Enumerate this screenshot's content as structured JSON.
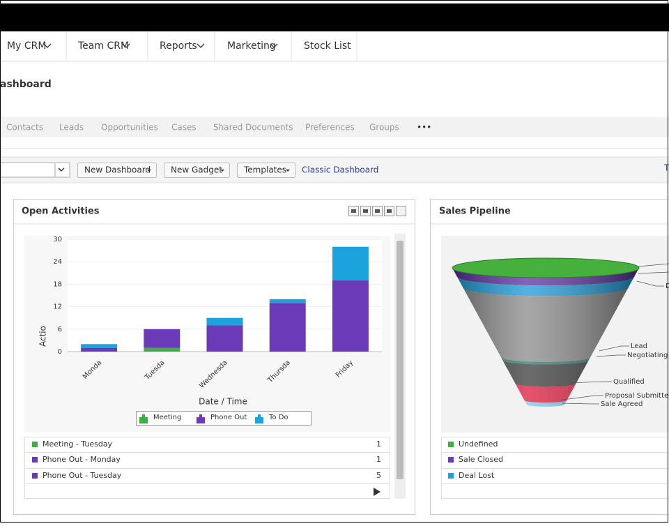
{
  "nav": [
    "My CRM",
    "Team CRM",
    "Reports",
    "Marketing",
    "Stock List"
  ],
  "page_title": "ashboard",
  "tabs": [
    "Contacts",
    "Leads",
    "Opportunities",
    "Cases",
    "Shared Documents",
    "Preferences",
    "Groups",
    "•••"
  ],
  "toolbar": {
    "buttons": [
      "New Dashboard",
      "New Gadget",
      "Templates"
    ],
    "link": "Classic Dashboard",
    "cropped": "T"
  },
  "open_activities": {
    "title": "Open Activities",
    "chart": {
      "type": "bar",
      "stacked": true,
      "y_label": "Actio",
      "x_label": "Date / Time",
      "categories": [
        "Monda",
        "Tuesda",
        "Wednesda",
        "Thursda",
        "Friday"
      ],
      "series": [
        {
          "name": "Meeting",
          "color": "#3cb043",
          "values": [
            0,
            1,
            0,
            0,
            0
          ]
        },
        {
          "name": "Phone Out",
          "color": "#6a3ab8",
          "values": [
            1,
            5,
            7,
            13,
            19
          ]
        },
        {
          "name": "To Do",
          "color": "#1aa3dc",
          "values": [
            1,
            0,
            2,
            1,
            9
          ]
        }
      ],
      "ylim": [
        0,
        30
      ],
      "yticks": [
        0,
        6,
        12,
        18,
        24,
        30
      ],
      "grid": true
    },
    "rows": [
      {
        "label": "Meeting - Tuesday",
        "value": 1,
        "color": "#3cb043"
      },
      {
        "label": "Phone Out - Monday",
        "value": 1,
        "color": "#6a3ab8"
      },
      {
        "label": "Phone Out - Tuesday",
        "value": 5,
        "color": "#6a3ab8"
      }
    ]
  },
  "sales_pipeline": {
    "title": "Sales Pipeline",
    "funnel_labels": [
      "Lead",
      "Negotiating",
      "Qualified",
      "Proposal Submitted",
      "Sale Agreed",
      "D"
    ],
    "rows": [
      {
        "label": "Undefined",
        "color": "#3cb043"
      },
      {
        "label": "Sale Closed",
        "color": "#6a3ab8"
      },
      {
        "label": "Deal Lost",
        "color": "#1aa3dc"
      }
    ]
  }
}
